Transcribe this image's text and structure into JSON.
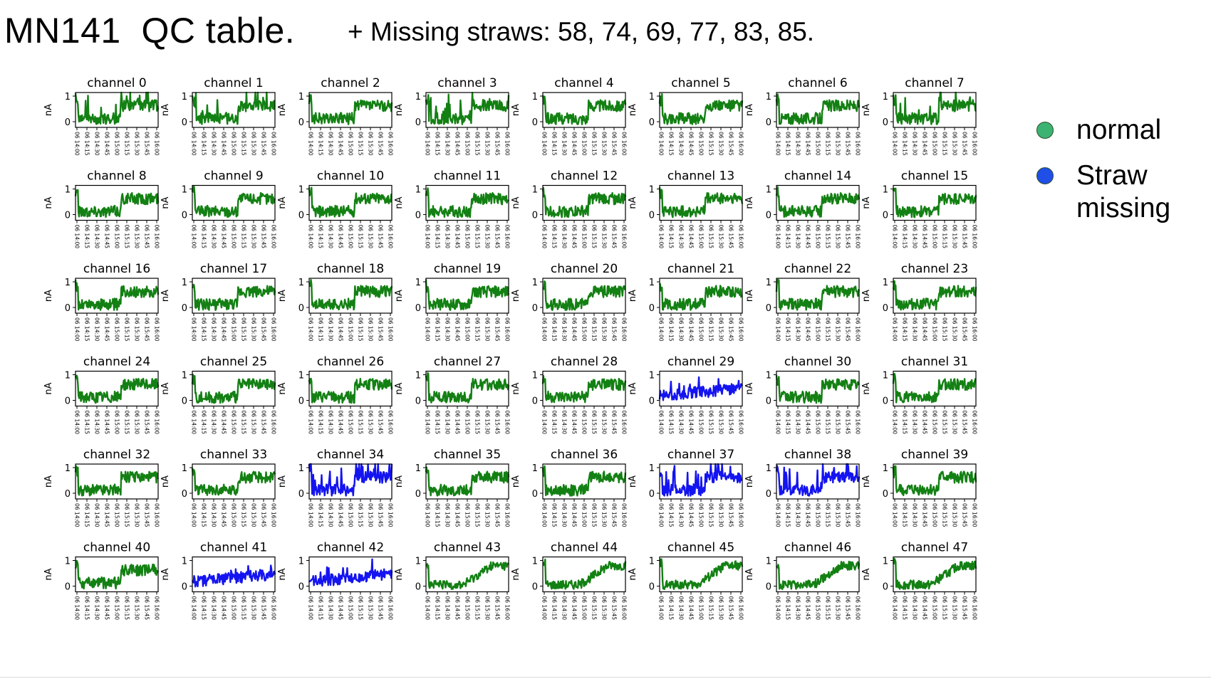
{
  "title": "MN141  QC table.",
  "subtitle": "+ Missing straws: 58, 74, 69, 77, 83, 85.",
  "legend": [
    {
      "label": "normal",
      "color": "#3cb371"
    },
    {
      "label": "Straw missing",
      "color": "#1f4fe6"
    }
  ],
  "colors": {
    "normal": "#138013",
    "missing": "#1414f0"
  },
  "chart_data": {
    "type": "line",
    "layout": "small multiples, 6 rows x 8 columns",
    "ylabel": "nA",
    "yticks": [
      "0",
      "1"
    ],
    "xticks": [
      "06 14:00",
      "06 14:15",
      "06 14:30",
      "06 14:45",
      "06 15:00",
      "06 15:15",
      "06 15:30",
      "06 15:45",
      "06 16:00"
    ],
    "panels": [
      {
        "title": "channel 0",
        "status": "normal",
        "pattern": "spiky"
      },
      {
        "title": "channel 1",
        "status": "normal",
        "pattern": "spiky"
      },
      {
        "title": "channel 2",
        "status": "normal",
        "pattern": "standard"
      },
      {
        "title": "channel 3",
        "status": "normal",
        "pattern": "spiky"
      },
      {
        "title": "channel 4",
        "status": "normal",
        "pattern": "standard"
      },
      {
        "title": "channel 5",
        "status": "normal",
        "pattern": "standard"
      },
      {
        "title": "channel 6",
        "status": "normal",
        "pattern": "standard"
      },
      {
        "title": "channel 7",
        "status": "normal",
        "pattern": "spiky"
      },
      {
        "title": "channel 8",
        "status": "normal",
        "pattern": "standard"
      },
      {
        "title": "channel 9",
        "status": "normal",
        "pattern": "standard"
      },
      {
        "title": "channel 10",
        "status": "normal",
        "pattern": "standard"
      },
      {
        "title": "channel 11",
        "status": "normal",
        "pattern": "standard"
      },
      {
        "title": "channel 12",
        "status": "normal",
        "pattern": "standard"
      },
      {
        "title": "channel 13",
        "status": "normal",
        "pattern": "standard"
      },
      {
        "title": "channel 14",
        "status": "normal",
        "pattern": "standard"
      },
      {
        "title": "channel 15",
        "status": "normal",
        "pattern": "standard"
      },
      {
        "title": "channel 16",
        "status": "normal",
        "pattern": "standard"
      },
      {
        "title": "channel 17",
        "status": "normal",
        "pattern": "standard"
      },
      {
        "title": "channel 18",
        "status": "normal",
        "pattern": "standard"
      },
      {
        "title": "channel 19",
        "status": "normal",
        "pattern": "standard"
      },
      {
        "title": "channel 20",
        "status": "normal",
        "pattern": "standard"
      },
      {
        "title": "channel 21",
        "status": "normal",
        "pattern": "standard"
      },
      {
        "title": "channel 22",
        "status": "normal",
        "pattern": "standard"
      },
      {
        "title": "channel 23",
        "status": "normal",
        "pattern": "standard"
      },
      {
        "title": "channel 24",
        "status": "normal",
        "pattern": "standard"
      },
      {
        "title": "channel 25",
        "status": "normal",
        "pattern": "standard"
      },
      {
        "title": "channel 26",
        "status": "normal",
        "pattern": "standard"
      },
      {
        "title": "channel 27",
        "status": "normal",
        "pattern": "standard"
      },
      {
        "title": "channel 28",
        "status": "normal",
        "pattern": "standard"
      },
      {
        "title": "channel 29",
        "status": "missing",
        "pattern": "low"
      },
      {
        "title": "channel 30",
        "status": "normal",
        "pattern": "standard"
      },
      {
        "title": "channel 31",
        "status": "normal",
        "pattern": "standard"
      },
      {
        "title": "channel 32",
        "status": "normal",
        "pattern": "standard"
      },
      {
        "title": "channel 33",
        "status": "normal",
        "pattern": "standard"
      },
      {
        "title": "channel 34",
        "status": "missing",
        "pattern": "spiky"
      },
      {
        "title": "channel 35",
        "status": "normal",
        "pattern": "standard"
      },
      {
        "title": "channel 36",
        "status": "normal",
        "pattern": "standard"
      },
      {
        "title": "channel 37",
        "status": "missing",
        "pattern": "spiky"
      },
      {
        "title": "channel 38",
        "status": "missing",
        "pattern": "spiky"
      },
      {
        "title": "channel 39",
        "status": "normal",
        "pattern": "standard"
      },
      {
        "title": "channel 40",
        "status": "normal",
        "pattern": "standard"
      },
      {
        "title": "channel 41",
        "status": "missing",
        "pattern": "low"
      },
      {
        "title": "channel 42",
        "status": "missing",
        "pattern": "low"
      },
      {
        "title": "channel 43",
        "status": "normal",
        "pattern": "ramp"
      },
      {
        "title": "channel 44",
        "status": "normal",
        "pattern": "ramp"
      },
      {
        "title": "channel 45",
        "status": "normal",
        "pattern": "ramp"
      },
      {
        "title": "channel 46",
        "status": "normal",
        "pattern": "ramp"
      },
      {
        "title": "channel 47",
        "status": "normal",
        "pattern": "ramp"
      }
    ]
  }
}
